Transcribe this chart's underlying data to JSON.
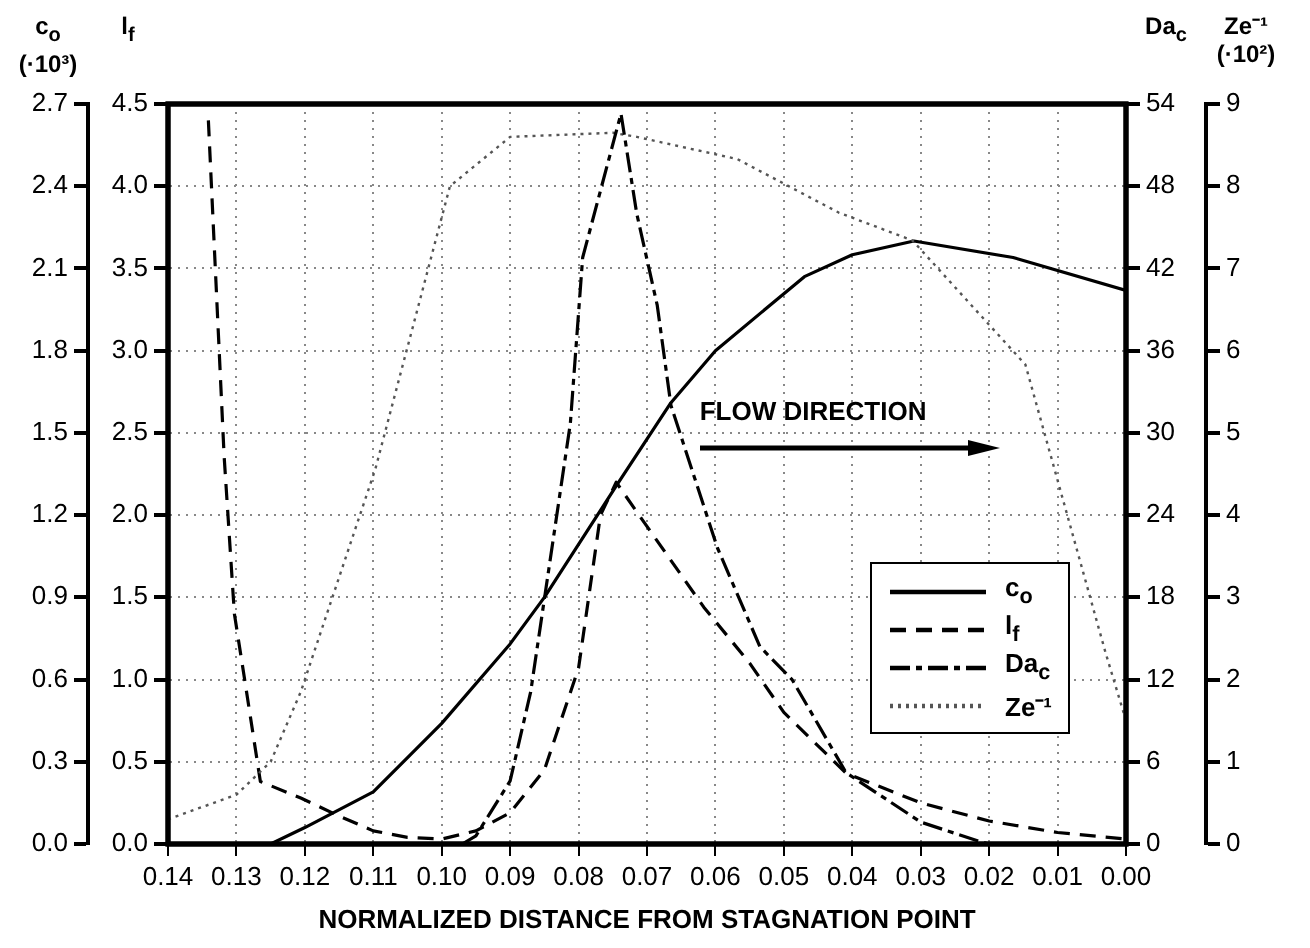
{
  "chart_data": [
    {
      "type": "line",
      "xlabel": "NORMALIZED DISTANCE FROM STAGNATION POINT",
      "ylabel": "c$_{o}$\n(·10³)",
      "y2label": "l$_{f}$",
      "xlim": [
        0.14,
        0
      ],
      "xticks": [
        0.14,
        0.13,
        0.12,
        0.11,
        {
          "value": 0.1,
          "label": "0.10"
        },
        0.09,
        0.08,
        0.07,
        0.06,
        0.05,
        0.04,
        0.03,
        0.02,
        0.01,
        {
          "value": 0,
          "label": "0.00"
        }
      ],
      "ylim": [
        0,
        2.7
      ],
      "yticks": [
        {
          "value": 0,
          "label": "0.0"
        },
        0.3,
        0.6,
        0.9,
        1.2,
        1.5,
        1.8,
        2.1,
        2.4,
        2.7
      ],
      "y2lim": [
        0,
        4.5
      ],
      "y2ticks": [
        {
          "value": 0,
          "label": "0.0"
        },
        0.5,
        {
          "value": 1,
          "label": "1.0"
        },
        1.5,
        {
          "value": 2,
          "label": "2.0"
        },
        2.5,
        {
          "value": 3,
          "label": "3.0"
        },
        3.5,
        {
          "value": 4,
          "label": "4.0"
        },
        4.5
      ],
      "series": [
        {
          "name": "c$_{o}$",
          "color": "#000000",
          "line_style": "solid",
          "x": [
            0.125,
            0.12,
            0.11,
            0.1,
            0.09,
            0.085,
            0.0744,
            0.0665,
            0.06,
            0.047,
            0.04,
            0.031,
            0.0165,
            0
          ],
          "values": [
            0,
            0.06,
            0.19,
            0.44,
            0.73,
            0.9,
            1.31,
            1.61,
            1.8,
            2.07,
            2.15,
            2.2,
            2.14,
            2.02
          ]
        },
        {
          "name": "l$_{f}$",
          "color": "#000000",
          "line_style": "dashed",
          "axis": "y2",
          "x": [
            0.1341,
            0.1318,
            0.1303,
            0.1288,
            0.1265,
            0.1206,
            0.115,
            0.11,
            0.105,
            0.1,
            0.095,
            0.09,
            0.085,
            0.08,
            0.0768,
            0.0745,
            0.0715,
            0.0617,
            0.055,
            0.05,
            0.0409,
            0.03,
            0.02,
            0.01,
            0
          ],
          "values": [
            4.4,
            2.36,
            1.4,
            1.0,
            0.38,
            0.28,
            0.17,
            0.08,
            0.04,
            0.03,
            0.08,
            0.19,
            0.45,
            1.07,
            2.0,
            2.2,
            2.02,
            1.44,
            1.1,
            0.8,
            0.43,
            0.25,
            0.14,
            0.07,
            0.03
          ]
        }
      ],
      "annotations": [
        "FLOW DIRECTION"
      ],
      "marker": "none",
      "grid": true,
      "legend": "bottom right"
    },
    {
      "type": "line",
      "ylabel": "Da$_{c}$",
      "y2label": "Ze⁻¹\n(·10²)",
      "xlim": [
        0.14,
        0
      ],
      "ylim": [
        0,
        54
      ],
      "yticks": [
        0,
        6,
        12,
        18,
        24,
        30,
        36,
        42,
        48,
        54
      ],
      "y2lim": [
        0,
        9
      ],
      "y2ticks": [
        0,
        1,
        2,
        3,
        4,
        5,
        6,
        7,
        8,
        9
      ],
      "series": [
        {
          "name": "Da$_{c}$",
          "color": "#000000",
          "line_style": "dashdot",
          "x": [
            0.097,
            0.095,
            0.09,
            0.087,
            0.0812,
            0.0794,
            0.0738,
            0.0715,
            0.0685,
            0.0665,
            0.0597,
            0.0535,
            0.0488,
            0.0409,
            0.03,
            0.0215,
            0.02
          ],
          "values": [
            0,
            0.6,
            4.6,
            11.1,
            30.7,
            42.8,
            53.3,
            46,
            39.3,
            32,
            21.6,
            14.4,
            12,
            5.2,
            1.6,
            0.2,
            0
          ]
        },
        {
          "name": "Ze⁻¹",
          "color": "#555555",
          "line_style": "dotted",
          "axis": "y2",
          "x": [
            0.14,
            0.13,
            0.125,
            0.1206,
            0.1097,
            0.0988,
            0.09,
            0.075,
            0.0715,
            0.0568,
            0.042,
            0.0312,
            0.0147,
            0.003,
            0
          ],
          "values": [
            0.3,
            0.6,
            1.0,
            1.85,
            4.56,
            8.0,
            8.6,
            8.65,
            8.6,
            8.33,
            7.68,
            7.34,
            5.83,
            2.33,
            1.5
          ]
        }
      ],
      "marker": "none",
      "legend": "bottom right",
      "tick_labels": "y"
    }
  ]
}
